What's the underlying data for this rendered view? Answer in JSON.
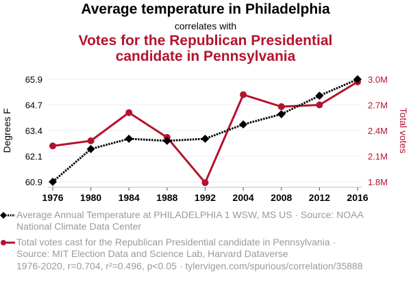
{
  "header": {
    "title": "Average temperature in Philadelphia",
    "subtitle": "correlates with",
    "title2_line1": "Votes for the Republican Presidential",
    "title2_line2": "candidate in Pennsylvania"
  },
  "colors": {
    "temp": "#000000",
    "votes": "#b5122e",
    "grid": "#eeeeee",
    "legend_text": "#9a9a9a"
  },
  "chart_data": {
    "type": "line",
    "title": "Average temperature in Philadelphia correlates with Votes for the Republican Presidential candidate in Pennsylvania",
    "categories": [
      "1976",
      "1980",
      "1984",
      "1988",
      "1992",
      "2004",
      "2008",
      "2012",
      "2016"
    ],
    "series": [
      {
        "name": "Average Annual Temperature at PHILADELPHIA 1 WSW, MS US",
        "axis": "left",
        "style": "dotted-diamond",
        "values": [
          60.9,
          62.5,
          63.0,
          62.9,
          63.0,
          63.7,
          64.2,
          65.1,
          65.9
        ]
      },
      {
        "name": "Total votes cast for the Republican Presidential candidate in Pennsylvania",
        "axis": "right",
        "style": "solid-circle",
        "values": [
          2.22,
          2.28,
          2.61,
          2.32,
          1.79,
          2.82,
          2.68,
          2.7,
          2.97
        ]
      }
    ],
    "ylabel": "Degrees F",
    "y2label": "Total votes",
    "ylim": [
      60.9,
      65.9
    ],
    "y2lim": [
      1.8,
      3.0
    ],
    "yticks": [
      "60.9",
      "62.1",
      "63.4",
      "64.7",
      "65.9"
    ],
    "y2ticks": [
      "1.8M",
      "2.1M",
      "2.4M",
      "2.7M",
      "3.0M"
    ],
    "grid": true,
    "legend_position": "bottom"
  },
  "legend": {
    "temp_line1": "Average Annual Temperature at PHILADELPHIA 1 WSW, MS US · Source: NOAA",
    "temp_line2": "National Climate Data Center",
    "votes_line1": "Total votes cast for the Republican Presidential candidate in Pennsylvania ·",
    "votes_line2": "Source: MIT Election Data and Science Lab, Harvard Dataverse"
  },
  "footer": "1976-2020, r=0.704, r²=0.496, p<0.05 · tylervigen.com/spurious/correlation/35888"
}
